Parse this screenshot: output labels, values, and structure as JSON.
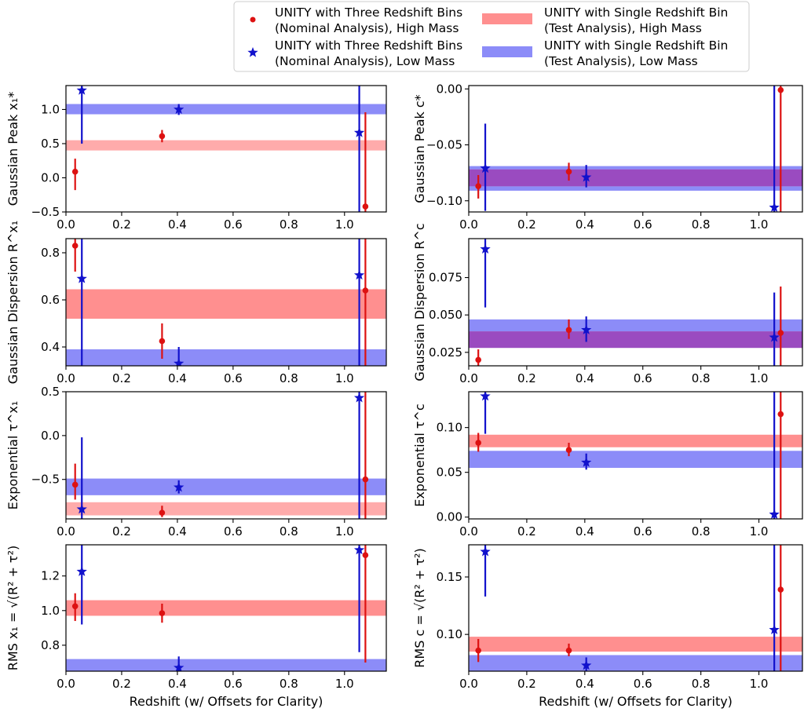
{
  "colors": {
    "high_mass": "#dd1111",
    "low_mass": "#1111cc",
    "high_band": "#ff8f8f",
    "low_band": "#8c8cf8"
  },
  "legend": {
    "items": [
      {
        "key": "red_point",
        "lines": [
          "UNITY with Three Redshift Bins",
          "(Nominal Analysis), High Mass"
        ]
      },
      {
        "key": "blue_star",
        "lines": [
          "UNITY with Three Redshift Bins",
          "(Nominal Analysis), Low Mass"
        ]
      },
      {
        "key": "red_band",
        "lines": [
          "UNITY with Single Redshift Bin",
          "(Test Analysis), High Mass"
        ]
      },
      {
        "key": "blue_band",
        "lines": [
          "UNITY with Single Redshift Bin",
          "(Test Analysis), Low Mass"
        ]
      }
    ]
  },
  "chart_data": [
    {
      "type": "scatter",
      "panel": "top-left",
      "xlabel": "",
      "ylabel": "Gaussian Peak x₁*",
      "xlim": [
        0,
        1.15
      ],
      "ylim": [
        -0.5,
        1.35
      ],
      "xticks": [
        "0.0",
        "0.2",
        "0.4",
        "0.6",
        "0.8",
        "1.0"
      ],
      "yticks": [
        {
          "v": -0.5,
          "t": "−0.5"
        },
        {
          "v": 0,
          "t": "0.0"
        },
        {
          "v": 0.5,
          "t": "0.5"
        },
        {
          "v": 1.0,
          "t": "1.0"
        }
      ],
      "series": [
        {
          "marker": "dot",
          "color": "high",
          "points": [
            {
              "x": 0.033,
              "y": 0.09,
              "lo": -0.18,
              "hi": 0.28
            },
            {
              "x": 0.345,
              "y": 0.61,
              "lo": 0.52,
              "hi": 0.7
            },
            {
              "x": 1.075,
              "y": -0.42,
              "lo": -0.5,
              "hi": 0.96
            }
          ]
        },
        {
          "marker": "star",
          "color": "low",
          "points": [
            {
              "x": 0.057,
              "y": 1.28,
              "lo": 0.5,
              "hi": 1.35
            },
            {
              "x": 0.405,
              "y": 1.0,
              "lo": 0.92,
              "hi": 1.08
            },
            {
              "x": 1.053,
              "y": 0.66,
              "lo": -0.5,
              "hi": 1.35
            }
          ]
        }
      ],
      "bands": [
        {
          "color": "low",
          "y0": 0.93,
          "y1": 1.08
        },
        {
          "color": "high",
          "y0": 0.4,
          "y1": 0.55
        }
      ]
    },
    {
      "type": "scatter",
      "panel": "top-right",
      "xlabel": "",
      "ylabel": "Gaussian Peak c*",
      "xlim": [
        0,
        1.15
      ],
      "ylim": [
        -0.11,
        0.003
      ],
      "xticks": [
        "0.0",
        "0.2",
        "0.4",
        "0.6",
        "0.8",
        "1.0"
      ],
      "yticks": [
        {
          "v": -0.1,
          "t": "−0.10"
        },
        {
          "v": -0.05,
          "t": "−0.05"
        },
        {
          "v": 0.0,
          "t": "0.00"
        }
      ],
      "series": [
        {
          "marker": "dot",
          "color": "high",
          "points": [
            {
              "x": 0.033,
              "y": -0.087,
              "lo": -0.098,
              "hi": -0.077
            },
            {
              "x": 0.345,
              "y": -0.074,
              "lo": -0.082,
              "hi": -0.066
            },
            {
              "x": 1.075,
              "y": -0.001,
              "lo": -0.11,
              "hi": 0.003
            }
          ]
        },
        {
          "marker": "star",
          "color": "low",
          "points": [
            {
              "x": 0.057,
              "y": -0.071,
              "lo": -0.109,
              "hi": -0.031
            },
            {
              "x": 0.405,
              "y": -0.079,
              "lo": -0.088,
              "hi": -0.068
            },
            {
              "x": 1.053,
              "y": -0.106,
              "lo": -0.11,
              "hi": 0.003
            }
          ]
        }
      ],
      "bands": [
        {
          "color": "low",
          "y0": -0.091,
          "y1": -0.069
        },
        {
          "color": "high",
          "y0": -0.087,
          "y1": -0.072
        }
      ]
    },
    {
      "type": "scatter",
      "panel": "second-left",
      "xlabel": "",
      "ylabel": "Gaussian Dispersion R^x₁",
      "xlim": [
        0,
        1.15
      ],
      "ylim": [
        0.32,
        0.86
      ],
      "xticks": [
        "0.0",
        "0.2",
        "0.4",
        "0.6",
        "0.8",
        "1.0"
      ],
      "yticks": [
        {
          "v": 0.4,
          "t": "0.4"
        },
        {
          "v": 0.6,
          "t": "0.6"
        },
        {
          "v": 0.8,
          "t": "0.8"
        }
      ],
      "series": [
        {
          "marker": "dot",
          "color": "high",
          "points": [
            {
              "x": 0.033,
              "y": 0.83,
              "lo": 0.72,
              "hi": 0.86
            },
            {
              "x": 0.345,
              "y": 0.425,
              "lo": 0.35,
              "hi": 0.5
            },
            {
              "x": 1.075,
              "y": 0.64,
              "lo": 0.32,
              "hi": 0.86
            }
          ]
        },
        {
          "marker": "star",
          "color": "low",
          "points": [
            {
              "x": 0.057,
              "y": 0.69,
              "lo": 0.32,
              "hi": 0.86
            },
            {
              "x": 0.405,
              "y": 0.33,
              "lo": 0.32,
              "hi": 0.4
            },
            {
              "x": 1.053,
              "y": 0.705,
              "lo": 0.32,
              "hi": 0.86
            }
          ]
        }
      ],
      "bands": [
        {
          "color": "high",
          "y0": 0.52,
          "y1": 0.645
        },
        {
          "color": "low",
          "y0": 0.32,
          "y1": 0.39
        }
      ]
    },
    {
      "type": "scatter",
      "panel": "second-right",
      "xlabel": "",
      "ylabel": "Gaussian Dispersion R^c",
      "xlim": [
        0,
        1.15
      ],
      "ylim": [
        0.016,
        0.101
      ],
      "xticks": [
        "0.0",
        "0.2",
        "0.4",
        "0.6",
        "0.8",
        "1.0"
      ],
      "yticks": [
        {
          "v": 0.025,
          "t": "0.025"
        },
        {
          "v": 0.05,
          "t": "0.050"
        },
        {
          "v": 0.075,
          "t": "0.075"
        }
      ],
      "series": [
        {
          "marker": "dot",
          "color": "high",
          "points": [
            {
              "x": 0.033,
              "y": 0.02,
              "lo": 0.016,
              "hi": 0.027
            },
            {
              "x": 0.345,
              "y": 0.04,
              "lo": 0.034,
              "hi": 0.047
            },
            {
              "x": 1.075,
              "y": 0.038,
              "lo": 0.016,
              "hi": 0.069
            }
          ]
        },
        {
          "marker": "star",
          "color": "low",
          "points": [
            {
              "x": 0.057,
              "y": 0.094,
              "lo": 0.055,
              "hi": 0.101
            },
            {
              "x": 0.405,
              "y": 0.04,
              "lo": 0.032,
              "hi": 0.049
            },
            {
              "x": 1.053,
              "y": 0.035,
              "lo": 0.016,
              "hi": 0.065
            }
          ]
        }
      ],
      "bands": [
        {
          "color": "low",
          "y0": 0.028,
          "y1": 0.047
        },
        {
          "color": "high",
          "y0": 0.028,
          "y1": 0.039
        }
      ]
    },
    {
      "type": "scatter",
      "panel": "third-left",
      "xlabel": "",
      "ylabel": "Exponential τ^x₁",
      "xlim": [
        0,
        1.15
      ],
      "ylim": [
        -0.95,
        0.5
      ],
      "xticks": [
        "0.0",
        "0.2",
        "0.4",
        "0.6",
        "0.8",
        "1.0"
      ],
      "yticks": [
        {
          "v": -0.5,
          "t": "−0.5"
        },
        {
          "v": 0.0,
          "t": "0.0"
        },
        {
          "v": 0.5,
          "t": "0.5"
        }
      ],
      "series": [
        {
          "marker": "dot",
          "color": "high",
          "points": [
            {
              "x": 0.033,
              "y": -0.56,
              "lo": -0.73,
              "hi": -0.32
            },
            {
              "x": 0.345,
              "y": -0.88,
              "lo": -0.93,
              "hi": -0.8
            },
            {
              "x": 1.075,
              "y": -0.5,
              "lo": -0.95,
              "hi": 0.5
            }
          ]
        },
        {
          "marker": "star",
          "color": "low",
          "points": [
            {
              "x": 0.057,
              "y": -0.84,
              "lo": -0.95,
              "hi": -0.02
            },
            {
              "x": 0.405,
              "y": -0.59,
              "lo": -0.66,
              "hi": -0.51
            },
            {
              "x": 1.053,
              "y": 0.43,
              "lo": -0.95,
              "hi": 0.5
            }
          ]
        }
      ],
      "bands": [
        {
          "color": "low",
          "y0": -0.68,
          "y1": -0.49
        },
        {
          "color": "high",
          "y0": -0.91,
          "y1": -0.76
        }
      ]
    },
    {
      "type": "scatter",
      "panel": "third-right",
      "xlabel": "",
      "ylabel": "Exponential τ^c",
      "xlim": [
        0,
        1.15
      ],
      "ylim": [
        -0.002,
        0.14
      ],
      "xticks": [
        "0.0",
        "0.2",
        "0.4",
        "0.6",
        "0.8",
        "1.0"
      ],
      "yticks": [
        {
          "v": 0.0,
          "t": "0.00"
        },
        {
          "v": 0.05,
          "t": "0.05"
        },
        {
          "v": 0.1,
          "t": "0.10"
        }
      ],
      "series": [
        {
          "marker": "dot",
          "color": "high",
          "points": [
            {
              "x": 0.033,
              "y": 0.083,
              "lo": 0.073,
              "hi": 0.094
            },
            {
              "x": 0.345,
              "y": 0.075,
              "lo": 0.068,
              "hi": 0.083
            },
            {
              "x": 1.075,
              "y": 0.115,
              "lo": -0.002,
              "hi": 0.14
            }
          ]
        },
        {
          "marker": "star",
          "color": "low",
          "points": [
            {
              "x": 0.057,
              "y": 0.135,
              "lo": 0.093,
              "hi": 0.14
            },
            {
              "x": 0.405,
              "y": 0.061,
              "lo": 0.053,
              "hi": 0.071
            },
            {
              "x": 1.053,
              "y": 0.003,
              "lo": -0.002,
              "hi": 0.14
            }
          ]
        }
      ],
      "bands": [
        {
          "color": "high",
          "y0": 0.078,
          "y1": 0.092
        },
        {
          "color": "low",
          "y0": 0.055,
          "y1": 0.074
        }
      ]
    },
    {
      "type": "scatter",
      "panel": "bottom-left",
      "xlabel": "Redshift (w/ Offsets for Clarity)",
      "ylabel": "RMS x₁ = √(R² + τ²)",
      "xlim": [
        0,
        1.15
      ],
      "ylim": [
        0.65,
        1.38
      ],
      "xticks": [
        "0.0",
        "0.2",
        "0.4",
        "0.6",
        "0.8",
        "1.0"
      ],
      "yticks": [
        {
          "v": 0.8,
          "t": "0.8"
        },
        {
          "v": 1.0,
          "t": "1.0"
        },
        {
          "v": 1.2,
          "t": "1.2"
        }
      ],
      "series": [
        {
          "marker": "dot",
          "color": "high",
          "points": [
            {
              "x": 0.033,
              "y": 1.025,
              "lo": 0.94,
              "hi": 1.1
            },
            {
              "x": 0.345,
              "y": 0.985,
              "lo": 0.93,
              "hi": 1.04
            },
            {
              "x": 1.075,
              "y": 1.32,
              "lo": 0.7,
              "hi": 1.38
            }
          ]
        },
        {
          "marker": "star",
          "color": "low",
          "points": [
            {
              "x": 0.057,
              "y": 1.225,
              "lo": 0.92,
              "hi": 1.38
            },
            {
              "x": 0.405,
              "y": 0.67,
              "lo": 0.65,
              "hi": 0.735
            },
            {
              "x": 1.053,
              "y": 1.35,
              "lo": 0.76,
              "hi": 1.38
            }
          ]
        }
      ],
      "bands": [
        {
          "color": "high",
          "y0": 0.97,
          "y1": 1.06
        },
        {
          "color": "low",
          "y0": 0.65,
          "y1": 0.72
        }
      ]
    },
    {
      "type": "scatter",
      "panel": "bottom-right",
      "xlabel": "Redshift (w/ Offsets for Clarity)",
      "ylabel": "RMS c = √(R² + τ²)",
      "xlim": [
        0,
        1.15
      ],
      "ylim": [
        0.068,
        0.178
      ],
      "xticks": [
        "0.0",
        "0.2",
        "0.4",
        "0.6",
        "0.8",
        "1.0"
      ],
      "yticks": [
        {
          "v": 0.1,
          "t": "0.10"
        },
        {
          "v": 0.15,
          "t": "0.15"
        }
      ],
      "series": [
        {
          "marker": "dot",
          "color": "high",
          "points": [
            {
              "x": 0.033,
              "y": 0.086,
              "lo": 0.076,
              "hi": 0.096
            },
            {
              "x": 0.345,
              "y": 0.086,
              "lo": 0.081,
              "hi": 0.092
            },
            {
              "x": 1.075,
              "y": 0.139,
              "lo": 0.068,
              "hi": 0.178
            }
          ]
        },
        {
          "marker": "star",
          "color": "low",
          "points": [
            {
              "x": 0.057,
              "y": 0.172,
              "lo": 0.133,
              "hi": 0.178
            },
            {
              "x": 0.405,
              "y": 0.073,
              "lo": 0.068,
              "hi": 0.08
            },
            {
              "x": 1.053,
              "y": 0.104,
              "lo": 0.068,
              "hi": 0.178
            }
          ]
        }
      ],
      "bands": [
        {
          "color": "high",
          "y0": 0.085,
          "y1": 0.098
        },
        {
          "color": "low",
          "y0": 0.068,
          "y1": 0.082
        }
      ]
    }
  ]
}
